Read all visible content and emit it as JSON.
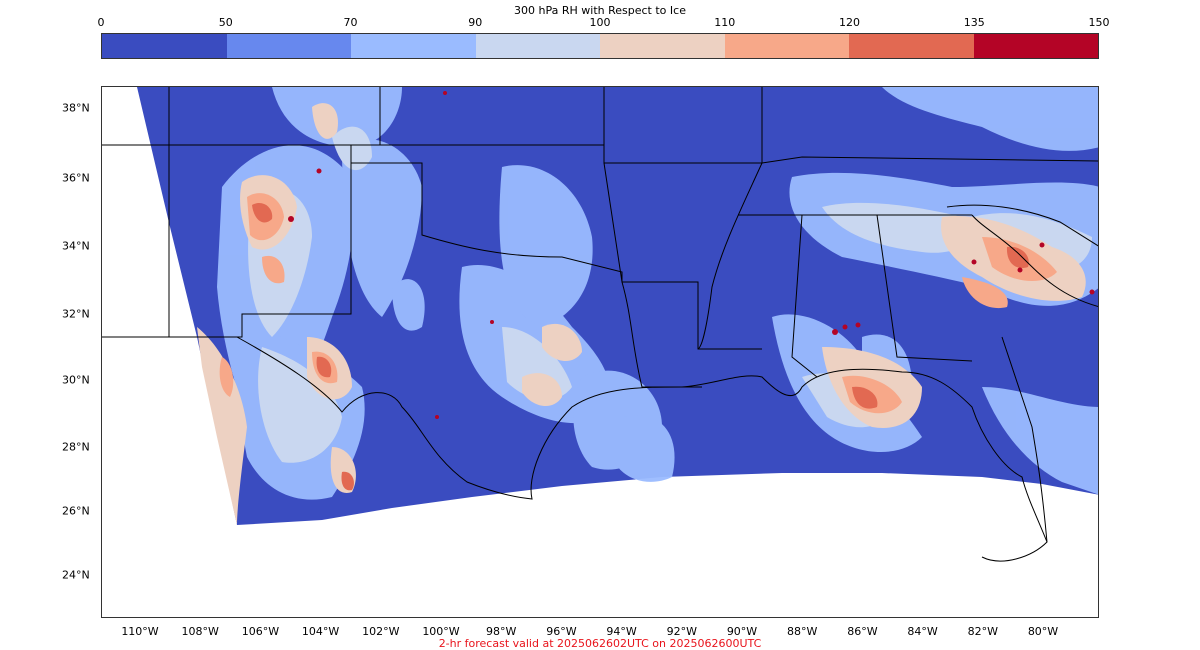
{
  "colorbar": {
    "title": "300 hPa RH with Respect to Ice",
    "ticks": [
      "0",
      "50",
      "70",
      "90",
      "100",
      "110",
      "120",
      "135",
      "150"
    ],
    "colors": [
      "#3a4cc0",
      "#6788ee",
      "#9abbff",
      "#c9d7f0",
      "#edd1c2",
      "#f7a889",
      "#e26952",
      "#b40426"
    ]
  },
  "map": {
    "lat_labels": [
      "38°N",
      "36°N",
      "34°N",
      "32°N",
      "30°N",
      "28°N",
      "26°N",
      "24°N"
    ],
    "lon_labels": [
      "110°W",
      "108°W",
      "106°W",
      "104°W",
      "102°W",
      "100°W",
      "98°W",
      "96°W",
      "94°W",
      "92°W",
      "90°W",
      "88°W",
      "86°W",
      "84°W",
      "82°W",
      "80°W"
    ],
    "colors": {
      "background": "#3a4cc0",
      "outline": "#000000"
    }
  },
  "footer": {
    "caption": "2-hr forecast valid at 2025062602UTC on 2025062600UTC",
    "color": "#e8141c"
  }
}
